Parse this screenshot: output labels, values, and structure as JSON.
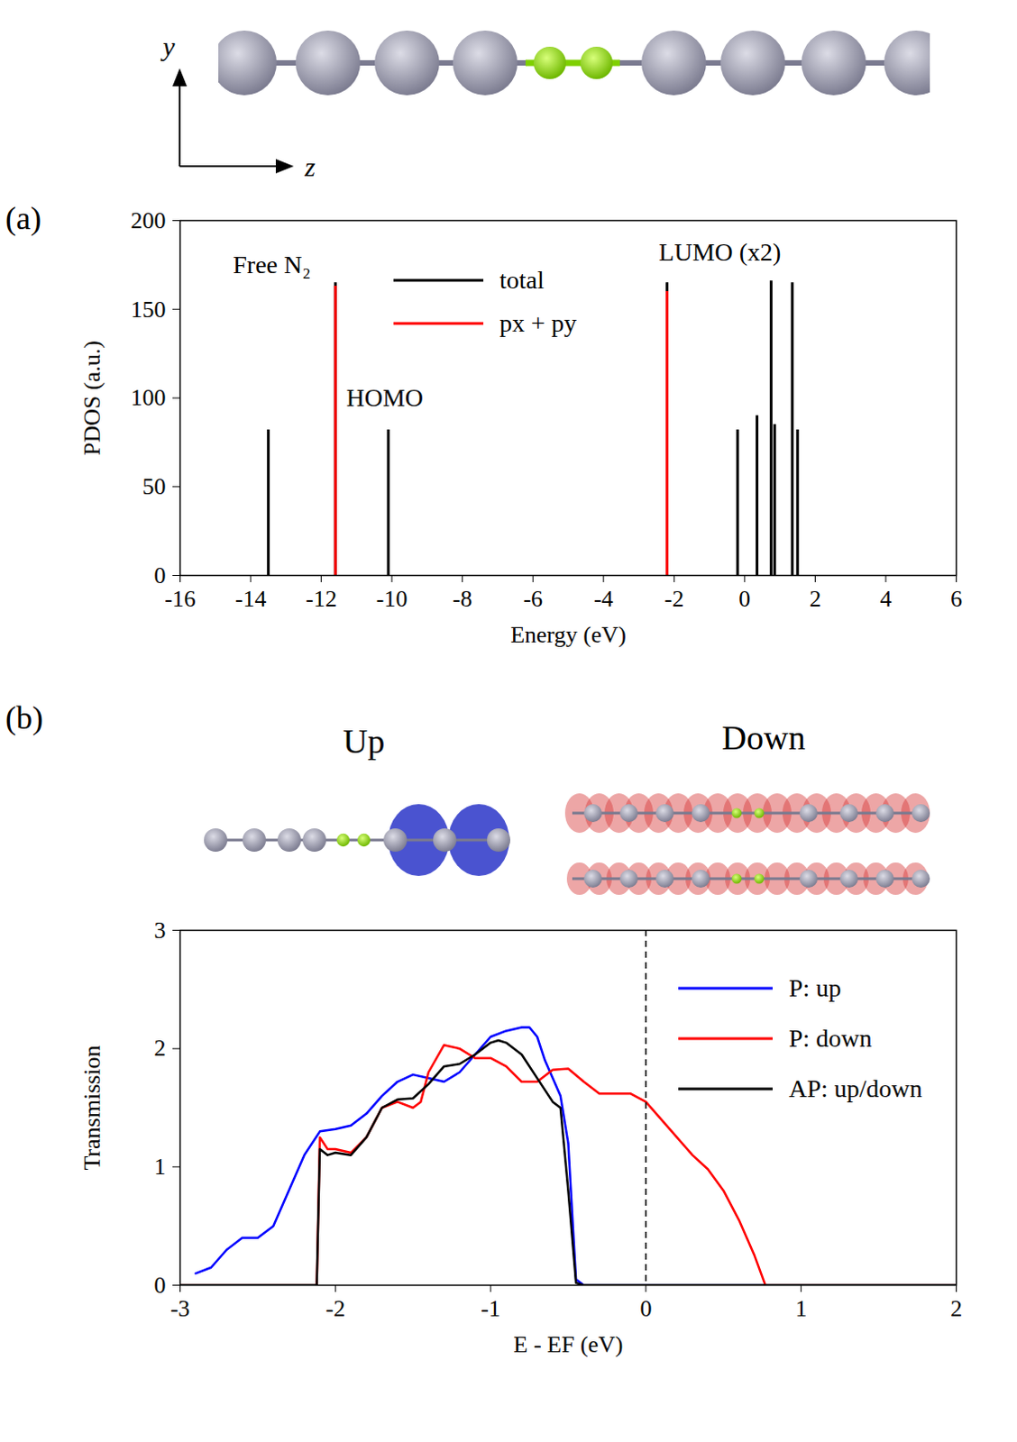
{
  "coordinate_axes": {
    "labels": [
      "y",
      "z"
    ]
  },
  "isosurface_labels": [
    "Up",
    "Down"
  ],
  "chart_data": [
    {
      "type": "stem",
      "panel": "(a)",
      "xlabel": "Energy (eV)",
      "ylabel": "PDOS (a.u.)",
      "xlim": [
        -16,
        6
      ],
      "xticks": [
        -16,
        -14,
        -12,
        -10,
        -8,
        -6,
        -4,
        -2,
        0,
        2,
        4,
        6
      ],
      "ylim": [
        0,
        200
      ],
      "yticks": [
        0,
        50,
        100,
        150,
        200
      ],
      "legend": "top",
      "annotations": [
        {
          "text": "Free N₂",
          "x": -13.4,
          "y": 175
        },
        {
          "text": "HOMO",
          "x": -10.2,
          "y": 100
        },
        {
          "text": "LUMO (x2)",
          "x": -0.7,
          "y": 182
        }
      ],
      "series": [
        {
          "name": "total",
          "color": "#000000",
          "x": [
            -13.5,
            -11.6,
            -10.1,
            -2.2,
            -0.2,
            0.35,
            0.75,
            0.85,
            1.35,
            1.5
          ],
          "values": [
            82,
            165,
            82,
            165,
            82,
            90,
            166,
            85,
            165,
            82
          ]
        },
        {
          "name": "px + py",
          "color": "#ff0000",
          "x": [
            -11.6,
            -2.2
          ],
          "values": [
            163,
            160
          ]
        }
      ]
    },
    {
      "type": "line",
      "panel": "(b)",
      "xlabel": "E - EF (eV)",
      "ylabel": "Transmission",
      "xlim": [
        -3,
        2
      ],
      "xticks": [
        -3,
        -2,
        -1,
        0,
        1,
        2
      ],
      "ylim": [
        0,
        3
      ],
      "yticks": [
        0,
        1,
        2,
        3
      ],
      "legend": "top-right",
      "reference_lines": [
        {
          "x": 0,
          "line_style": "dashed"
        }
      ],
      "series": [
        {
          "name": "P: up",
          "color": "#0000ff",
          "x": [
            -2.9,
            -2.8,
            -2.7,
            -2.6,
            -2.5,
            -2.4,
            -2.3,
            -2.2,
            -2.1,
            -2.0,
            -1.9,
            -1.8,
            -1.7,
            -1.6,
            -1.5,
            -1.4,
            -1.3,
            -1.2,
            -1.1,
            -1.0,
            -0.9,
            -0.8,
            -0.75,
            -0.7,
            -0.65,
            -0.6,
            -0.55,
            -0.5,
            -0.47,
            -0.45,
            -0.4,
            2
          ],
          "values": [
            0.1,
            0.15,
            0.3,
            0.4,
            0.4,
            0.5,
            0.8,
            1.1,
            1.3,
            1.32,
            1.35,
            1.45,
            1.6,
            1.72,
            1.78,
            1.75,
            1.72,
            1.8,
            1.95,
            2.1,
            2.15,
            2.18,
            2.18,
            2.1,
            1.9,
            1.75,
            1.6,
            1.2,
            0.5,
            0.05,
            0,
            0
          ]
        },
        {
          "name": "P: down",
          "color": "#ff0000",
          "x": [
            -3,
            -2.12,
            -2.1,
            -2.05,
            -2.0,
            -1.9,
            -1.8,
            -1.7,
            -1.6,
            -1.5,
            -1.45,
            -1.4,
            -1.3,
            -1.2,
            -1.1,
            -1.0,
            -0.9,
            -0.8,
            -0.7,
            -0.6,
            -0.5,
            -0.4,
            -0.3,
            -0.2,
            -0.1,
            0,
            0.1,
            0.2,
            0.3,
            0.4,
            0.5,
            0.6,
            0.7,
            0.77,
            2
          ],
          "values": [
            0,
            0,
            1.25,
            1.15,
            1.15,
            1.12,
            1.25,
            1.5,
            1.55,
            1.5,
            1.55,
            1.8,
            2.03,
            2.0,
            1.92,
            1.92,
            1.85,
            1.72,
            1.72,
            1.82,
            1.83,
            1.72,
            1.62,
            1.62,
            1.62,
            1.55,
            1.4,
            1.25,
            1.1,
            0.98,
            0.8,
            0.55,
            0.25,
            0,
            0
          ]
        },
        {
          "name": "AP: up/down",
          "color": "#000000",
          "x": [
            -3,
            -2.12,
            -2.1,
            -2.05,
            -2.0,
            -1.9,
            -1.8,
            -1.7,
            -1.6,
            -1.5,
            -1.4,
            -1.3,
            -1.2,
            -1.1,
            -1.0,
            -0.95,
            -0.9,
            -0.8,
            -0.7,
            -0.6,
            -0.55,
            -0.5,
            -0.45,
            -0.4,
            2
          ],
          "values": [
            0,
            0,
            1.15,
            1.1,
            1.12,
            1.1,
            1.25,
            1.5,
            1.57,
            1.58,
            1.7,
            1.85,
            1.87,
            1.95,
            2.05,
            2.07,
            2.05,
            1.95,
            1.75,
            1.55,
            1.5,
            0.8,
            0.02,
            0,
            0
          ]
        }
      ]
    }
  ]
}
